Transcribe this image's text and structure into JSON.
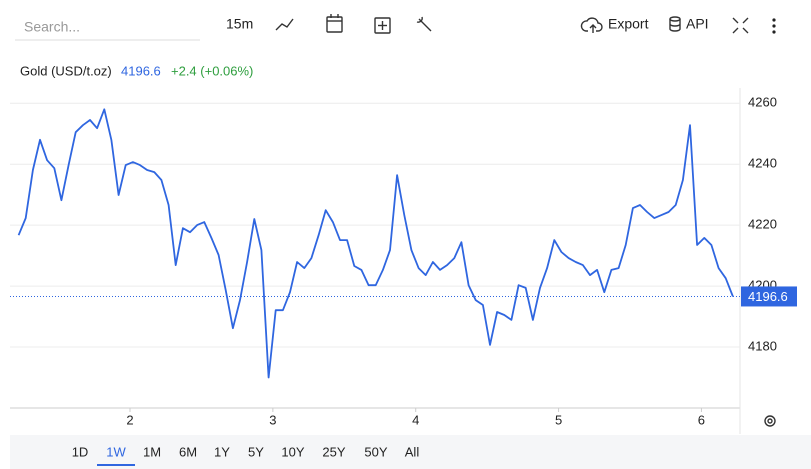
{
  "toolbar": {
    "search_placeholder": "Search...",
    "interval": "15m",
    "export": "Export",
    "api": "API"
  },
  "chart_data": {
    "type": "line",
    "change": "+2.4 (+0.06%)",
    "x": [
      1.22,
      1.27,
      1.32,
      1.37,
      1.42,
      1.47,
      1.52,
      1.57,
      1.62,
      1.67,
      1.72,
      1.77,
      1.82,
      1.87,
      1.92,
      1.97,
      2.02,
      2.07,
      2.12,
      2.17,
      2.22,
      2.27,
      2.32,
      2.37,
      2.42,
      2.47,
      2.52,
      2.57,
      2.62,
      2.67,
      2.72,
      2.77,
      2.82,
      2.87,
      2.92,
      2.97,
      3.02,
      3.07,
      3.12,
      3.17,
      3.22,
      3.27,
      3.32,
      3.37,
      3.42,
      3.47,
      3.52,
      3.57,
      3.62,
      3.67,
      3.72,
      3.77,
      3.82,
      3.87,
      3.92,
      3.97,
      4.02,
      4.07,
      4.12,
      4.17,
      4.22,
      4.27,
      4.32,
      4.37,
      4.42,
      4.47,
      4.52,
      4.57,
      4.62,
      4.67,
      4.72,
      4.77,
      4.82,
      4.87,
      4.92,
      4.97,
      5.02,
      5.07,
      5.12,
      5.17,
      5.22,
      5.27,
      5.32,
      5.37,
      5.42,
      5.47,
      5.52,
      5.57,
      5.62,
      5.67,
      5.72,
      5.77,
      5.82,
      5.87,
      5.92,
      5.97,
      6.02,
      6.07,
      6.12,
      6.17,
      6.22
    ],
    "series": [
      {
        "name": "Gold (USD/t.oz)",
        "color": "#2f66e0",
        "values": [
          4216.7,
          4222.3,
          4238.1,
          4248.0,
          4241.3,
          4238.7,
          4228.2,
          4239.7,
          4250.5,
          4252.8,
          4254.5,
          4251.8,
          4258.0,
          4247.9,
          4229.9,
          4239.7,
          4240.7,
          4239.7,
          4238.1,
          4237.4,
          4234.8,
          4226.6,
          4206.9,
          4219.0,
          4217.7,
          4220.0,
          4221.0,
          4215.8,
          4210.2,
          4198.7,
          4186.2,
          4195.4,
          4207.9,
          4222.0,
          4211.8,
          4170.0,
          4192.1,
          4192.1,
          4198.0,
          4207.9,
          4205.9,
          4209.2,
          4216.7,
          4224.9,
          4221.0,
          4215.1,
          4215.1,
          4206.6,
          4205.3,
          4200.3,
          4200.3,
          4205.3,
          4211.8,
          4236.4,
          4223.3,
          4211.8,
          4205.9,
          4203.6,
          4207.9,
          4205.3,
          4206.9,
          4209.2,
          4214.4,
          4200.3,
          4195.4,
          4193.8,
          4180.7,
          4191.5,
          4190.5,
          4188.9,
          4200.3,
          4199.4,
          4188.9,
          4199.4,
          4205.9,
          4215.1,
          4211.2,
          4209.2,
          4207.9,
          4206.9,
          4203.6,
          4205.3,
          4198.0,
          4205.3,
          4205.9,
          4213.5,
          4225.6,
          4226.6,
          4224.3,
          4222.3,
          4223.3,
          4224.3,
          4226.6,
          4234.8,
          4252.8,
          4213.5,
          4215.8,
          4213.5,
          4205.9,
          4202.6,
          4196.6
        ]
      }
    ],
    "xlim": [
      1.16,
      6.27
    ],
    "xticks": [
      2,
      3,
      4,
      5,
      6
    ],
    "ylim": [
      4160,
      4265
    ],
    "yticks": [
      4180,
      4200,
      4220,
      4240,
      4260
    ],
    "grid": true
  },
  "range_selector": {
    "options": [
      "1D",
      "1W",
      "1M",
      "6M",
      "1Y",
      "5Y",
      "10Y",
      "25Y",
      "50Y",
      "All"
    ],
    "selected": 1
  }
}
